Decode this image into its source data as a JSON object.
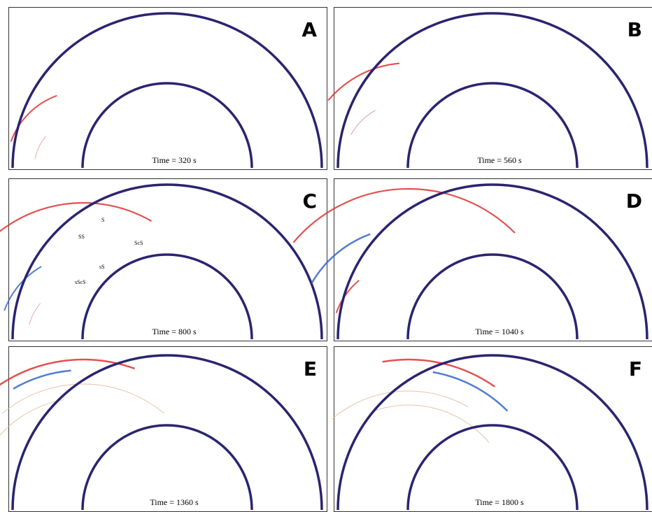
{
  "panels": [
    {
      "label": "A",
      "time": "Time = 320 s"
    },
    {
      "label": "B",
      "time": "Time = 560 s"
    },
    {
      "label": "C",
      "time": "Time = 800 s",
      "phases": [
        "S",
        "SS",
        "ScS",
        "sS",
        "sScS"
      ]
    },
    {
      "label": "D",
      "time": "Time = 1040 s"
    },
    {
      "label": "E",
      "time": "Time = 1360 s"
    },
    {
      "label": "F",
      "time": "Time = 1800 s"
    }
  ]
}
